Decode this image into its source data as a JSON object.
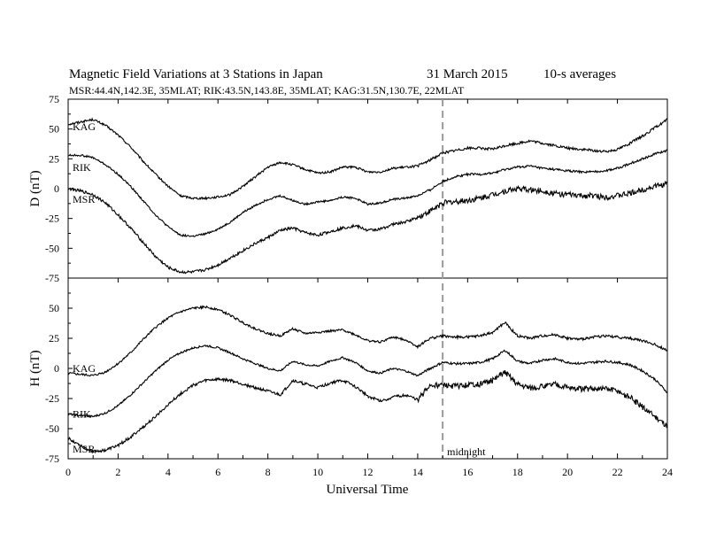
{
  "header": {
    "title": "Magnetic Field Variations at 3 Stations in Japan",
    "date": "31  March   2015",
    "averaging": "10-s averages",
    "stations_line": "MSR:44.4N,142.3E, 35MLAT;  RIK:43.5N,143.8E, 35MLAT;  KAG:31.5N,130.7E, 22MLAT"
  },
  "chart_data": [
    {
      "type": "line",
      "ylabel": "D (nT)",
      "xlim": [
        0,
        24
      ],
      "ylim": [
        -75,
        75
      ],
      "yticks": [
        75,
        50,
        25,
        0,
        -25,
        -50,
        -75
      ],
      "x": [
        0,
        0.5,
        1,
        1.5,
        2,
        2.5,
        3,
        3.5,
        4,
        4.5,
        5,
        5.5,
        6,
        6.5,
        7,
        7.5,
        8,
        8.5,
        9,
        9.5,
        10,
        10.5,
        11,
        11.5,
        12,
        12.5,
        13,
        13.5,
        14,
        14.5,
        15,
        15.5,
        16,
        16.5,
        17,
        17.5,
        18,
        18.5,
        19,
        19.5,
        20,
        20.5,
        21,
        21.5,
        22,
        22.5,
        23,
        23.5,
        24
      ],
      "series": [
        {
          "name": "KAG",
          "values": [
            54,
            56,
            58,
            53,
            45,
            35,
            23,
            12,
            2,
            -6,
            -8,
            -8,
            -7,
            -5,
            2,
            10,
            18,
            22,
            20,
            16,
            13,
            14,
            18,
            18,
            14,
            14,
            17,
            18,
            19,
            24,
            30,
            32,
            34,
            34,
            33,
            36,
            38,
            40,
            38,
            36,
            34,
            33,
            32,
            31,
            33,
            38,
            44,
            51,
            58
          ]
        },
        {
          "name": "RIK",
          "values": [
            28,
            28,
            26,
            20,
            12,
            2,
            -10,
            -22,
            -32,
            -39,
            -40,
            -38,
            -34,
            -28,
            -20,
            -14,
            -9,
            -6,
            -10,
            -13,
            -11,
            -10,
            -7,
            -8,
            -13,
            -12,
            -9,
            -8,
            -6,
            -1,
            6,
            10,
            12,
            12,
            13,
            16,
            18,
            19,
            17,
            16,
            15,
            14,
            14,
            15,
            17,
            21,
            25,
            29,
            32
          ]
        },
        {
          "name": "MSR",
          "values": [
            0,
            -2,
            -5,
            -12,
            -22,
            -33,
            -45,
            -57,
            -66,
            -70,
            -70,
            -68,
            -64,
            -58,
            -52,
            -46,
            -41,
            -35,
            -33,
            -37,
            -39,
            -36,
            -33,
            -31,
            -35,
            -34,
            -30,
            -28,
            -24,
            -19,
            -12,
            -11,
            -10,
            -8,
            -5,
            -2,
            0,
            -1,
            -2,
            -4,
            -5,
            -6,
            -6,
            -7,
            -6,
            -4,
            -1,
            2,
            4
          ]
        }
      ]
    },
    {
      "type": "line",
      "ylabel": "H (nT)",
      "xlabel": "Universal Time",
      "xlim": [
        0,
        24
      ],
      "xticks": [
        0,
        2,
        4,
        6,
        8,
        10,
        12,
        14,
        16,
        18,
        20,
        22,
        24
      ],
      "ylim": [
        -75,
        75
      ],
      "yticks": [
        75,
        50,
        25,
        0,
        -25,
        -50,
        -75
      ],
      "x": [
        0,
        0.5,
        1,
        1.5,
        2,
        2.5,
        3,
        3.5,
        4,
        4.5,
        5,
        5.5,
        6,
        6.5,
        7,
        7.5,
        8,
        8.5,
        9,
        9.5,
        10,
        10.5,
        11,
        11.5,
        12,
        12.5,
        13,
        13.5,
        14,
        14.5,
        15,
        15.5,
        16,
        16.5,
        17,
        17.5,
        18,
        18.5,
        19,
        19.5,
        20,
        20.5,
        21,
        21.5,
        22,
        22.5,
        23,
        23.5,
        24
      ],
      "series": [
        {
          "name": "KAG",
          "values": [
            -4,
            -5,
            -6,
            -3,
            4,
            13,
            24,
            34,
            42,
            47,
            50,
            51,
            49,
            44,
            38,
            33,
            29,
            27,
            33,
            29,
            30,
            31,
            32,
            28,
            23,
            22,
            26,
            24,
            18,
            25,
            27,
            26,
            26,
            27,
            30,
            38,
            27,
            25,
            27,
            28,
            25,
            24,
            26,
            27,
            26,
            25,
            23,
            20,
            15
          ]
        },
        {
          "name": "RIK",
          "values": [
            -38,
            -39,
            -40,
            -37,
            -31,
            -22,
            -12,
            -2,
            7,
            13,
            17,
            19,
            17,
            13,
            8,
            4,
            0,
            -2,
            6,
            3,
            2,
            6,
            9,
            5,
            -2,
            -4,
            0,
            -2,
            -6,
            0,
            5,
            4,
            4,
            5,
            8,
            15,
            6,
            4,
            7,
            8,
            5,
            4,
            5,
            6,
            5,
            3,
            -2,
            -9,
            -20
          ]
        },
        {
          "name": "MSR",
          "values": [
            -58,
            -64,
            -69,
            -68,
            -64,
            -57,
            -49,
            -40,
            -30,
            -21,
            -14,
            -10,
            -9,
            -10,
            -13,
            -16,
            -19,
            -22,
            -10,
            -13,
            -16,
            -12,
            -10,
            -15,
            -23,
            -27,
            -24,
            -22,
            -26,
            -14,
            -14,
            -15,
            -14,
            -13,
            -10,
            -3,
            -13,
            -16,
            -15,
            -13,
            -16,
            -17,
            -17,
            -17,
            -19,
            -24,
            -32,
            -40,
            -48
          ]
        }
      ]
    }
  ],
  "annotations": {
    "marker_x": 15,
    "marker_label": "midnight",
    "d_label_positions": {
      "KAG": 52,
      "RIK": 18,
      "MSR": -9
    },
    "h_label_positions": {
      "KAG": 0,
      "RIK": -38,
      "MSR": -67
    }
  },
  "colors": {
    "trace": "#000000",
    "marker": "#999999",
    "axis": "#000000"
  }
}
